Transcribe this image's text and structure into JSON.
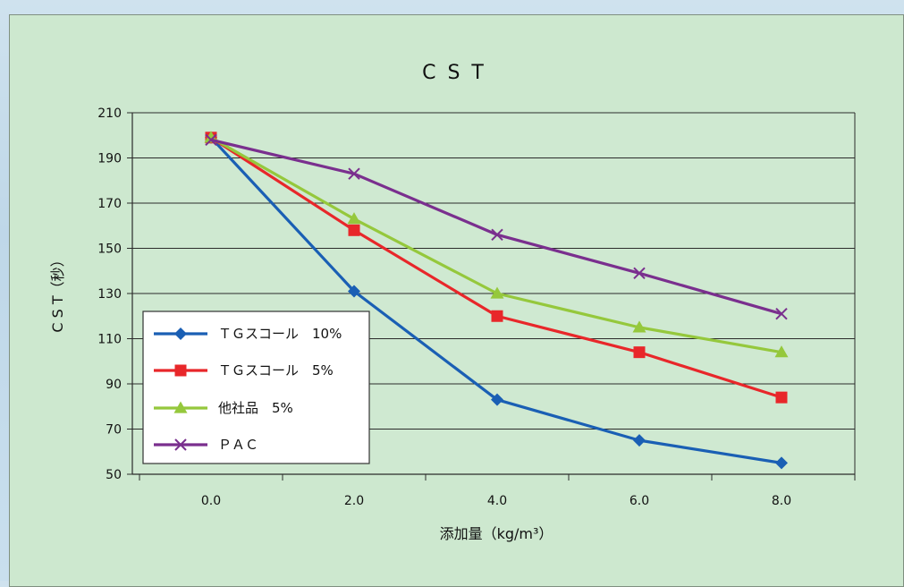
{
  "chart_data": {
    "type": "line",
    "title": "C S T",
    "xlabel": "添加量（kg/m³）",
    "ylabel": "C S T（秒）",
    "x": [
      0.0,
      2.0,
      4.0,
      6.0,
      8.0
    ],
    "x_tick_labels": [
      "0.0",
      "2.0",
      "4.0",
      "6.0",
      "8.0"
    ],
    "ylim": [
      50,
      210
    ],
    "y_ticks": [
      50,
      70,
      90,
      110,
      130,
      150,
      170,
      190,
      210
    ],
    "grid": true,
    "legend_position": "bottom-left",
    "series": [
      {
        "name": "ＴＧスコール　10%",
        "color": "#1a5fb4",
        "marker": "diamond",
        "values": [
          199,
          131,
          83,
          65,
          55
        ]
      },
      {
        "name": "ＴＧスコール　5%",
        "color": "#e8272a",
        "marker": "square",
        "values": [
          199,
          158,
          120,
          104,
          84
        ]
      },
      {
        "name": "他社品　5%",
        "color": "#95c83c",
        "marker": "triangle",
        "values": [
          199,
          163,
          130,
          115,
          104
        ]
      },
      {
        "name": "ＰＡＣ",
        "color": "#7a2f8e",
        "marker": "cross",
        "values": [
          198,
          183,
          156,
          139,
          121
        ]
      }
    ]
  }
}
